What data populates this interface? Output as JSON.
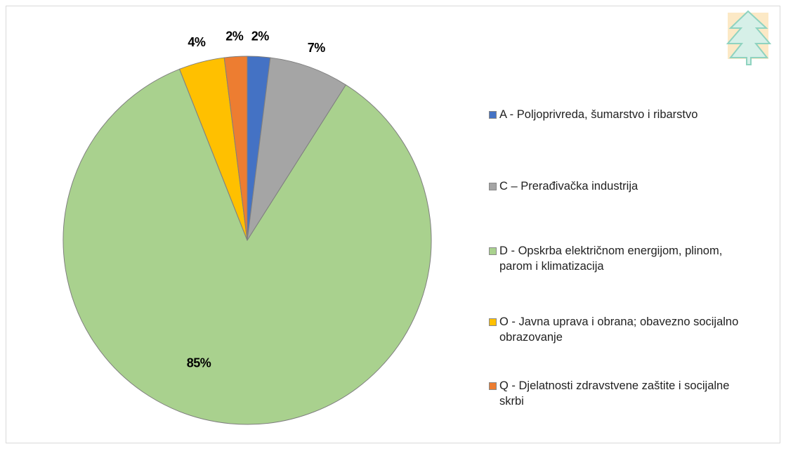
{
  "chart_data": {
    "type": "pie",
    "categories": [
      "A - Poljoprivreda, šumarstvo i ribarstvo",
      "C – Prerađivačka industrija",
      "D - Opskrba električnom energijom, plinom, parom i klimatizacija",
      "O - Javna uprava i obrana; obavezno socijalno obrazovanje",
      "Q - Djelatnosti zdravstvene zaštite i socijalne skrbi"
    ],
    "values": [
      2,
      7,
      85,
      4,
      2
    ],
    "value_labels": [
      "2%",
      "7%",
      "85%",
      "4%",
      "2%"
    ],
    "colors": [
      "#4472c4",
      "#a5a5a5",
      "#a9d18e",
      "#ffc000",
      "#ed7d31"
    ],
    "legend": "right"
  }
}
